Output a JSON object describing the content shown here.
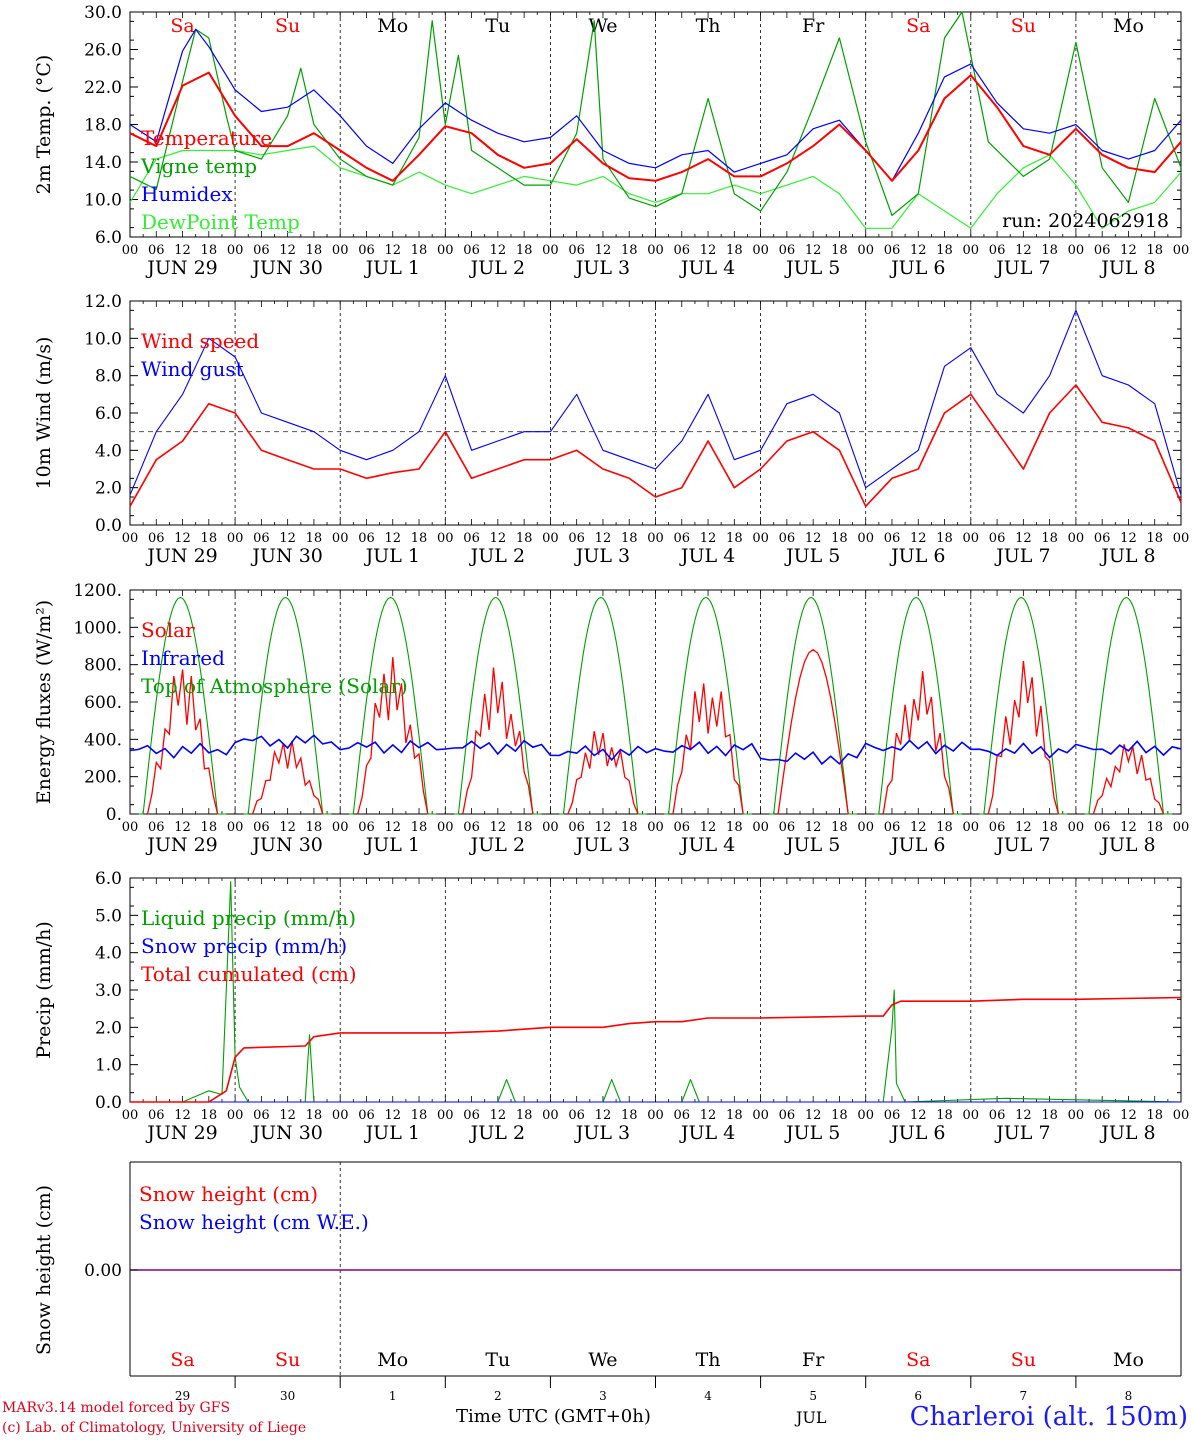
{
  "footer": {
    "model": "MARv3.14 model forced by GFS",
    "lab": "(c) Lab. of Climatology, University of Liege",
    "xlabel": "Time UTC (GMT+0h)",
    "month": "JUL",
    "station": "Charleroi (alt. 150m)"
  },
  "colors": {
    "red": "#ff0000",
    "green": "#00a000",
    "blue": "#0000ff",
    "lightgreen": "#33ee33",
    "purple": "#800080",
    "weekend": "#ff0000",
    "weekday": "#000000"
  },
  "chart_data": [
    {
      "type": "line",
      "ylabel": "2m Temp. (°C)",
      "ylim": [
        6,
        32
      ],
      "yticks": [
        "6.0",
        "10.0",
        "14.0",
        "18.0",
        "22.0",
        "26.0",
        "30.0"
      ],
      "run_label": "run: 2024062918",
      "hours": [
        "00",
        "06",
        "12",
        "18"
      ],
      "day_labels": [
        "JUN 29",
        "JUN 30",
        "JUL  1",
        "JUL  2",
        "JUL  3",
        "JUL  4",
        "JUL  5",
        "JUL  6",
        "JUL  7",
        "JUL  8"
      ],
      "weekdays": [
        "Sa",
        "Su",
        "Mo",
        "Tu",
        "We",
        "Th",
        "Fr",
        "Sa",
        "Su",
        "Mo"
      ],
      "weekend_flags": [
        1,
        1,
        0,
        0,
        0,
        0,
        0,
        1,
        1,
        0
      ],
      "x_unit": "hours since 2024-06-29 00 UTC",
      "series": [
        {
          "name": "Temperature",
          "color": "red",
          "x": [
            0,
            6,
            12,
            18,
            24,
            30,
            36,
            42,
            48,
            54,
            60,
            66,
            72,
            78,
            84,
            90,
            96,
            102,
            108,
            114,
            120,
            126,
            132,
            138,
            144,
            150,
            156,
            162,
            168,
            174,
            180,
            186,
            192,
            198,
            204,
            210,
            216,
            222,
            228,
            234,
            240
          ],
          "y": [
            18,
            16.5,
            23.5,
            25,
            20,
            16.5,
            16.5,
            18,
            16,
            14,
            12.5,
            15.5,
            18.8,
            18,
            15.5,
            14,
            14.5,
            17.3,
            14.5,
            12.8,
            12.5,
            13.5,
            15,
            13,
            13,
            14.5,
            16.5,
            19,
            16,
            12.5,
            16,
            22,
            24.7,
            21,
            16.5,
            15.5,
            18.5,
            15.5,
            14,
            13.5,
            17
          ]
        },
        {
          "name": "Vigne temp",
          "color": "green",
          "x": [
            0,
            6,
            12,
            15,
            18,
            22,
            24,
            30,
            36,
            39,
            42,
            48,
            54,
            60,
            66,
            69,
            72,
            75,
            78,
            84,
            90,
            96,
            102,
            106,
            108,
            114,
            120,
            126,
            132,
            138,
            144,
            150,
            156,
            162,
            168,
            174,
            180,
            186,
            190,
            196,
            204,
            210,
            216,
            222,
            228,
            234,
            240
          ],
          "y": [
            13,
            11.5,
            24,
            30,
            29,
            20,
            16,
            15,
            20,
            25.5,
            19,
            15,
            13,
            12,
            17.5,
            31,
            19,
            27,
            16,
            14,
            12,
            12,
            18,
            31,
            15,
            10.5,
            9.5,
            11,
            22,
            11,
            9,
            13.5,
            21,
            29,
            17,
            8.5,
            11,
            29,
            33,
            17,
            13,
            15,
            28.5,
            14,
            10,
            22,
            14
          ]
        },
        {
          "name": "Humidex",
          "color": "blue",
          "x": [
            0,
            6,
            12,
            15,
            18,
            24,
            30,
            36,
            42,
            48,
            54,
            60,
            66,
            72,
            78,
            84,
            90,
            96,
            102,
            108,
            114,
            120,
            126,
            132,
            138,
            144,
            150,
            156,
            162,
            168,
            174,
            180,
            186,
            192,
            198,
            204,
            210,
            216,
            222,
            228,
            234,
            240
          ],
          "y": [
            19,
            17,
            27.5,
            30,
            28,
            23,
            20.5,
            21,
            23,
            20,
            16.5,
            14.5,
            18.5,
            21.5,
            19.5,
            18,
            17,
            17.5,
            20,
            16,
            14.5,
            14,
            15.5,
            16,
            13.5,
            14.5,
            15.5,
            18.5,
            19.5,
            16,
            12.5,
            18,
            24.5,
            26,
            21.5,
            18.5,
            18,
            19,
            16,
            15,
            16,
            19.5
          ]
        },
        {
          "name": "DewPoint Temp",
          "color": "lightgreen",
          "x": [
            0,
            6,
            12,
            18,
            24,
            30,
            36,
            42,
            48,
            54,
            60,
            66,
            72,
            78,
            84,
            90,
            96,
            102,
            108,
            114,
            120,
            126,
            132,
            138,
            144,
            150,
            156,
            162,
            168,
            174,
            180,
            186,
            192,
            198,
            204,
            210,
            216,
            222,
            228,
            234,
            240
          ],
          "y": [
            10,
            15,
            16,
            16,
            16,
            15.5,
            16,
            16.5,
            14,
            13,
            12,
            13.5,
            12,
            11,
            12,
            13,
            12.5,
            12,
            13,
            11,
            10,
            11,
            11,
            12,
            11,
            12,
            13,
            11,
            7,
            7,
            11,
            9,
            7,
            11,
            14,
            15.5,
            12,
            7,
            9,
            10,
            13.5
          ]
        }
      ]
    },
    {
      "type": "line",
      "ylabel": "10m Wind (m/s)",
      "ylim": [
        0,
        12
      ],
      "yticks": [
        "0.0",
        "2.0",
        "4.0",
        "6.0",
        "8.0",
        "10.0",
        "12.0"
      ],
      "threshold": 5,
      "day_labels": [
        "JUN 29",
        "JUN 30",
        "JUL  1",
        "JUL  2",
        "JUL  3",
        "JUL  4",
        "JUL  5",
        "JUL  6",
        "JUL  7",
        "JUL  8"
      ],
      "series": [
        {
          "name": "Wind speed",
          "color": "red",
          "x": [
            0,
            6,
            12,
            18,
            24,
            30,
            36,
            42,
            48,
            54,
            60,
            66,
            72,
            78,
            84,
            90,
            96,
            102,
            108,
            114,
            120,
            126,
            132,
            138,
            144,
            150,
            156,
            162,
            168,
            174,
            180,
            186,
            192,
            198,
            204,
            210,
            216,
            222,
            228,
            234,
            240
          ],
          "y": [
            1,
            3.5,
            4.5,
            6.5,
            6,
            4,
            3.5,
            3,
            3,
            2.5,
            2.8,
            3,
            5,
            2.5,
            3,
            3.5,
            3.5,
            4,
            3,
            2.5,
            1.5,
            2,
            4.5,
            2,
            3,
            4.5,
            5,
            4,
            1,
            2.5,
            3,
            6,
            7,
            5,
            3,
            6,
            7.5,
            5.5,
            5.2,
            4.5,
            1.2
          ]
        },
        {
          "name": "Wind gust",
          "color": "blue",
          "x": [
            0,
            6,
            12,
            18,
            24,
            30,
            36,
            42,
            48,
            54,
            60,
            66,
            72,
            78,
            84,
            90,
            96,
            102,
            108,
            114,
            120,
            126,
            132,
            138,
            144,
            150,
            156,
            162,
            168,
            174,
            180,
            186,
            192,
            198,
            204,
            210,
            216,
            222,
            228,
            234,
            240
          ],
          "y": [
            1.6,
            5,
            7,
            10,
            9,
            6,
            5.5,
            5,
            4,
            3.5,
            4,
            5,
            8,
            4,
            4.5,
            5,
            5,
            7,
            4,
            3.5,
            3,
            4.5,
            7,
            3.5,
            4,
            6.5,
            7,
            6,
            2,
            3,
            4,
            8.5,
            9.5,
            7,
            6,
            8,
            11.5,
            8,
            7.5,
            6.5,
            1.6
          ]
        }
      ]
    },
    {
      "type": "line",
      "ylabel": "Energy fluxes (W/m²)",
      "ylim": [
        0,
        1200
      ],
      "yticks": [
        "0.",
        "200.",
        "400.",
        "600.",
        "800.",
        "1000.",
        "1200."
      ],
      "day_labels": [
        "JUN 29",
        "JUN 30",
        "JUL  1",
        "JUL  2",
        "JUL  3",
        "JUL  4",
        "JUL  5",
        "JUL  6",
        "JUL  7",
        "JUL  8"
      ],
      "series": [
        {
          "name": "Solar",
          "color": "red",
          "daily_peaks": [
            800,
            400,
            840,
            800,
            480,
            790,
            880,
            780,
            820,
            380
          ]
        },
        {
          "name": "Infrared",
          "color": "blue",
          "daily_levels": [
            340,
            390,
            360,
            360,
            330,
            350,
            300,
            360,
            340,
            350
          ]
        },
        {
          "name": "Top of Atmosphere (Solar)",
          "color": "green",
          "daily_peak": 1160
        }
      ]
    },
    {
      "type": "line",
      "ylabel": "Precip (mm/h)",
      "ylim": [
        0,
        6
      ],
      "yticks": [
        "0.0",
        "1.0",
        "2.0",
        "3.0",
        "4.0",
        "5.0",
        "6.0"
      ],
      "day_labels": [
        "JUN 29",
        "JUN 30",
        "JUL  1",
        "JUL  2",
        "JUL  3",
        "JUL  4",
        "JUL  5",
        "JUL  6",
        "JUL  7",
        "JUL  8"
      ],
      "series": [
        {
          "name": "Liquid precip (mm/h)",
          "color": "green",
          "x": [
            0,
            12,
            18,
            21,
            23,
            24,
            25,
            27,
            30,
            40,
            41,
            42,
            44,
            60,
            84,
            86,
            88,
            108,
            110,
            112,
            126,
            128,
            130,
            170,
            172,
            174,
            174.5,
            175,
            177,
            200,
            240
          ],
          "y": [
            0,
            0,
            0.3,
            0.2,
            5.9,
            1.2,
            0.4,
            0,
            0,
            0,
            1.8,
            0,
            0,
            0,
            0,
            0.6,
            0,
            0,
            0.6,
            0,
            0,
            0.6,
            0,
            0,
            0,
            2.0,
            3.0,
            0.5,
            0,
            0.1,
            0
          ]
        },
        {
          "name": "Snow precip (mm/h)",
          "color": "blue",
          "x": [
            0,
            240
          ],
          "y": [
            0,
            0
          ]
        },
        {
          "name": "Total cumulated (cm)",
          "color": "red",
          "x": [
            0,
            18,
            22,
            24,
            26,
            40,
            42,
            48,
            72,
            84,
            96,
            108,
            114,
            120,
            126,
            132,
            144,
            168,
            172,
            174,
            176,
            180,
            192,
            204,
            216,
            240
          ],
          "y": [
            0,
            0,
            0.3,
            1.2,
            1.45,
            1.5,
            1.75,
            1.85,
            1.85,
            1.9,
            2.0,
            2.0,
            2.1,
            2.15,
            2.15,
            2.25,
            2.25,
            2.3,
            2.3,
            2.6,
            2.7,
            2.7,
            2.7,
            2.75,
            2.75,
            2.8
          ]
        }
      ]
    },
    {
      "type": "line",
      "ylabel": "Snow height (cm)",
      "ytick": "0.00",
      "day_numbers": [
        "29",
        "30",
        "1",
        "2",
        "3",
        "4",
        "5",
        "6",
        "7",
        "8"
      ],
      "weekdays": [
        "Sa",
        "Su",
        "Mo",
        "Tu",
        "We",
        "Th",
        "Fr",
        "Sa",
        "Su",
        "Mo"
      ],
      "series": [
        {
          "name": "Snow height (cm)",
          "color": "red",
          "values": [
            0
          ]
        },
        {
          "name": "Snow height (cm W.E.)",
          "color": "blue",
          "values": [
            0
          ]
        }
      ]
    }
  ]
}
